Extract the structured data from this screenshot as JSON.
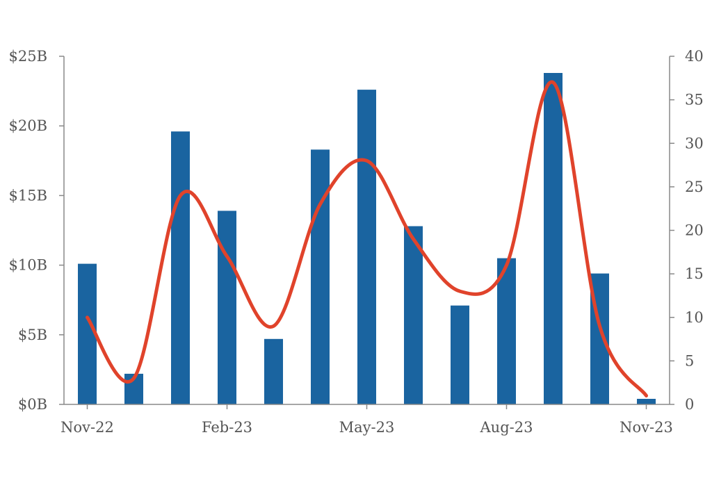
{
  "chart_data": {
    "type": "bar",
    "combo": "bar+line",
    "months": [
      "Nov-22",
      "Dec-22",
      "Jan-23",
      "Feb-23",
      "Mar-23",
      "Apr-23",
      "May-23",
      "Jun-23",
      "Jul-23",
      "Aug-23",
      "Sep-23",
      "Oct-23",
      "Nov-23"
    ],
    "x_tick_labels": [
      "Nov-22",
      "Feb-23",
      "May-23",
      "Aug-23",
      "Nov-23"
    ],
    "y_left": {
      "ticks": [
        "$0B",
        "$5B",
        "$10B",
        "$15B",
        "$20B",
        "$25B"
      ],
      "min": 0,
      "max": 25,
      "unit": "B"
    },
    "y_right": {
      "ticks": [
        "0",
        "5",
        "10",
        "15",
        "20",
        "25",
        "30",
        "35",
        "40"
      ],
      "min": 0,
      "max": 40
    },
    "bars": {
      "axis": "left",
      "color": "#1a64a0",
      "values": [
        10.1,
        2.2,
        19.6,
        13.9,
        4.7,
        18.3,
        22.6,
        12.8,
        7.1,
        10.5,
        23.8,
        9.4,
        0.4
      ]
    },
    "line": {
      "axis": "right",
      "color": "#e0432b",
      "smooth": true,
      "x": [
        "Nov-22",
        "Dec-22",
        "Jan-23",
        "Feb-23",
        "Mar-23",
        "Apr-23",
        "May-23",
        "Jun-23",
        "Jul-23",
        "Aug-23",
        "Sep-23",
        "Oct-23",
        "Nov-23"
      ],
      "values": [
        10,
        3,
        24,
        17,
        9,
        23,
        28,
        19,
        13,
        16,
        37,
        9,
        1
      ]
    },
    "grid": false,
    "legend": "none",
    "title": "",
    "xlabel": "",
    "ylabel": ""
  }
}
